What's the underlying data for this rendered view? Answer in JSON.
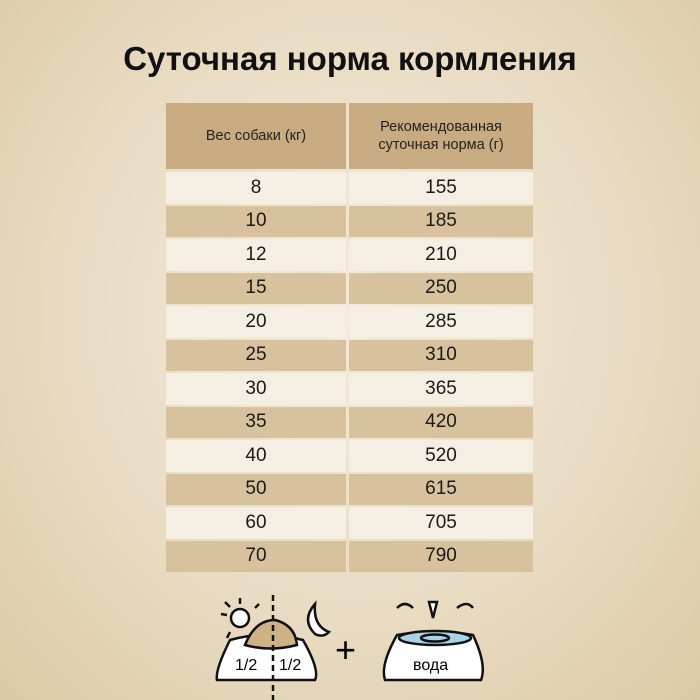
{
  "title": "Суточная норма кормления",
  "table": {
    "headers": [
      "Вес собаки (кг)",
      "Рекомендованная суточная норма (г)"
    ],
    "rows": [
      [
        "8",
        "155"
      ],
      [
        "10",
        "185"
      ],
      [
        "12",
        "210"
      ],
      [
        "15",
        "250"
      ],
      [
        "20",
        "285"
      ],
      [
        "25",
        "310"
      ],
      [
        "30",
        "365"
      ],
      [
        "35",
        "420"
      ],
      [
        "40",
        "520"
      ],
      [
        "50",
        "615"
      ],
      [
        "60",
        "705"
      ],
      [
        "70",
        "790"
      ]
    ]
  },
  "footer": {
    "half_left": "1/2",
    "half_right": "1/2",
    "plus": "+",
    "water": "вода",
    "icons": [
      "sun-icon",
      "moon-icon",
      "food-bowl-icon",
      "water-bowl-icon"
    ]
  },
  "colors": {
    "header": "#c8ab80",
    "row_light": "#f4eee3",
    "row_dark": "#d8c29d",
    "food": "#cfb186",
    "water": "#a9d3e6"
  }
}
